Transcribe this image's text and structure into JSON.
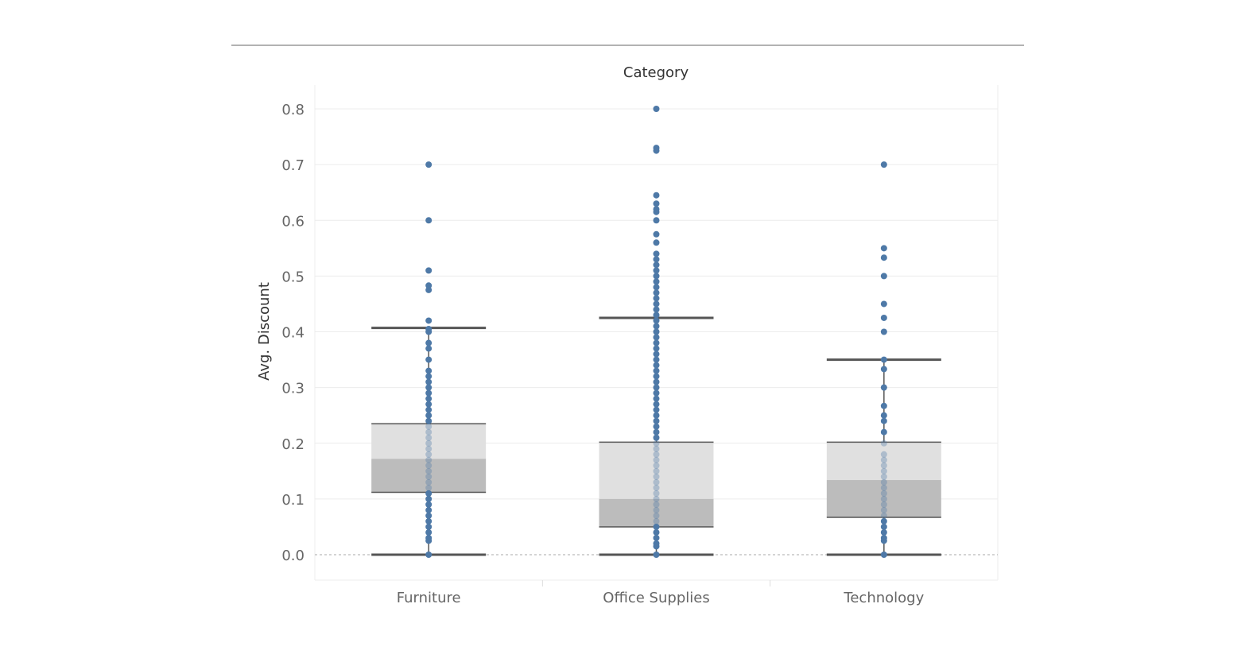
{
  "chart_data": {
    "type": "box",
    "header": "Category",
    "ylabel": "Avg. Discount",
    "ylim": [
      -0.045,
      0.83
    ],
    "yticks": [
      0.0,
      0.1,
      0.2,
      0.3,
      0.4,
      0.5,
      0.6,
      0.7,
      0.8
    ],
    "ytick_labels": [
      "0.0",
      "0.1",
      "0.2",
      "0.3",
      "0.4",
      "0.5",
      "0.6",
      "0.7",
      "0.8"
    ],
    "grid": true,
    "colors": {
      "point": "#4e79a7",
      "box_upper": "#e0e0e0",
      "box_lower": "#bcbcbc",
      "whisker": "#555555",
      "grid": "#ececec",
      "zero_line": "#aaaaaa"
    },
    "categories": [
      "Furniture",
      "Office Supplies",
      "Technology"
    ],
    "boxes": [
      {
        "category": "Furniture",
        "lower_whisker": 0.0,
        "q1": 0.112,
        "median": 0.172,
        "q3": 0.235,
        "upper_whisker": 0.407
      },
      {
        "category": "Office Supplies",
        "lower_whisker": 0.0,
        "q1": 0.05,
        "median": 0.1,
        "q3": 0.202,
        "upper_whisker": 0.425
      },
      {
        "category": "Technology",
        "lower_whisker": 0.0,
        "q1": 0.067,
        "median": 0.134,
        "q3": 0.202,
        "upper_whisker": 0.35
      }
    ],
    "points": [
      {
        "category": "Furniture",
        "values": [
          0.0,
          0.025,
          0.03,
          0.04,
          0.05,
          0.06,
          0.07,
          0.08,
          0.09,
          0.1,
          0.11,
          0.12,
          0.13,
          0.14,
          0.15,
          0.16,
          0.17,
          0.18,
          0.19,
          0.2,
          0.21,
          0.22,
          0.23,
          0.24,
          0.25,
          0.26,
          0.27,
          0.28,
          0.29,
          0.3,
          0.31,
          0.32,
          0.33,
          0.35,
          0.37,
          0.38,
          0.4,
          0.405,
          0.42,
          0.475,
          0.483,
          0.51,
          0.6,
          0.7
        ]
      },
      {
        "category": "Office Supplies",
        "values": [
          0.0,
          0.015,
          0.02,
          0.03,
          0.04,
          0.05,
          0.06,
          0.07,
          0.08,
          0.09,
          0.1,
          0.11,
          0.12,
          0.13,
          0.14,
          0.15,
          0.16,
          0.17,
          0.18,
          0.19,
          0.2,
          0.21,
          0.22,
          0.23,
          0.24,
          0.25,
          0.26,
          0.27,
          0.28,
          0.29,
          0.3,
          0.31,
          0.32,
          0.33,
          0.34,
          0.35,
          0.36,
          0.37,
          0.38,
          0.39,
          0.4,
          0.41,
          0.42,
          0.43,
          0.44,
          0.45,
          0.46,
          0.47,
          0.48,
          0.49,
          0.5,
          0.51,
          0.52,
          0.53,
          0.54,
          0.56,
          0.575,
          0.6,
          0.615,
          0.62,
          0.63,
          0.645,
          0.725,
          0.73,
          0.8
        ]
      },
      {
        "category": "Technology",
        "values": [
          0.0,
          0.025,
          0.03,
          0.04,
          0.05,
          0.06,
          0.07,
          0.08,
          0.09,
          0.1,
          0.11,
          0.12,
          0.13,
          0.14,
          0.15,
          0.16,
          0.17,
          0.18,
          0.2,
          0.22,
          0.24,
          0.25,
          0.267,
          0.3,
          0.333,
          0.35,
          0.4,
          0.425,
          0.45,
          0.5,
          0.533,
          0.55,
          0.7
        ]
      }
    ]
  }
}
